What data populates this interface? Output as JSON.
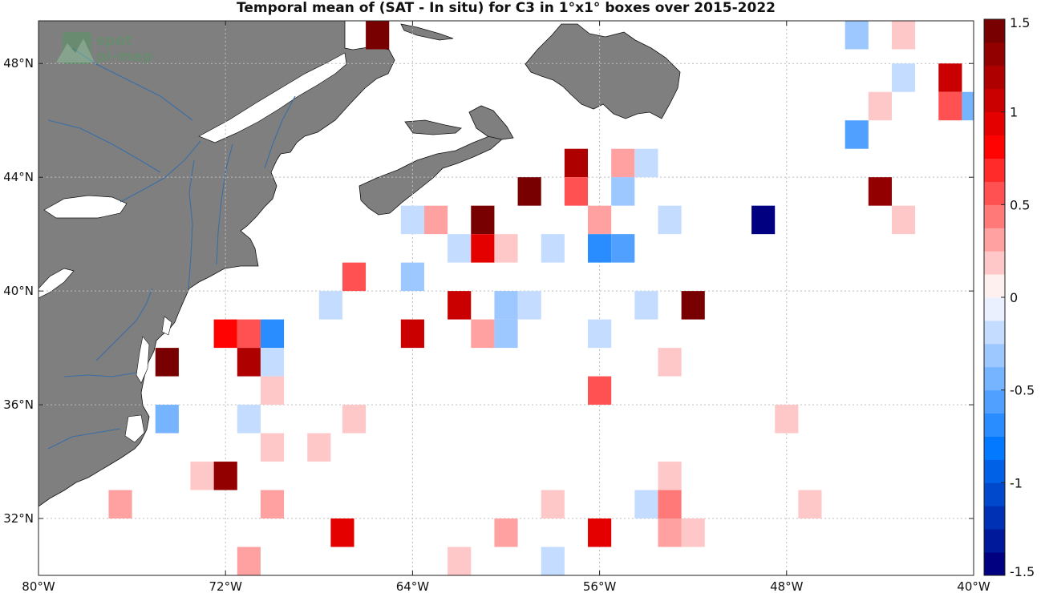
{
  "chart_data": {
    "type": "heatmap",
    "title": "Temporal mean of (SAT - In situ) for C3 in 1°x1° boxes over 2015-2022",
    "logo_text": "spot pi-men",
    "x_ticks": [
      "80°W",
      "72°W",
      "64°W",
      "56°W",
      "48°W",
      "40°W"
    ],
    "y_ticks": [
      "32°N",
      "36°N",
      "40°N",
      "44°N",
      "48°N"
    ],
    "xlim": [
      -80,
      -40
    ],
    "ylim": [
      30,
      49.5
    ],
    "grid": true,
    "colorbar": {
      "ticks": [
        "1.5",
        "1",
        "0.5",
        "0",
        "-0.5",
        "-1",
        "-1.5"
      ],
      "range": [
        -1.5,
        1.5
      ],
      "levels": 24,
      "colormap": "blue-white-red"
    },
    "land_color": "#7f7f7f",
    "cells": [
      {
        "lon": -65.5,
        "lat": 49.0,
        "value": 1.45
      },
      {
        "lon": -45.0,
        "lat": 49.0,
        "value": -0.35
      },
      {
        "lon": -43.0,
        "lat": 49.0,
        "value": 0.15
      },
      {
        "lon": -43.0,
        "lat": 47.5,
        "value": -0.2
      },
      {
        "lon": -41.0,
        "lat": 47.5,
        "value": 1.1
      },
      {
        "lon": -44.0,
        "lat": 46.5,
        "value": 0.15
      },
      {
        "lon": -41.0,
        "lat": 46.5,
        "value": 0.55
      },
      {
        "lon": -40.0,
        "lat": 46.5,
        "value": -0.45
      },
      {
        "lon": -45.0,
        "lat": 45.5,
        "value": -0.55
      },
      {
        "lon": -57.0,
        "lat": 44.5,
        "value": 1.2
      },
      {
        "lon": -55.0,
        "lat": 44.5,
        "value": 0.3
      },
      {
        "lon": -54.0,
        "lat": 44.5,
        "value": -0.15
      },
      {
        "lon": -59.0,
        "lat": 43.5,
        "value": 1.45
      },
      {
        "lon": -57.0,
        "lat": 43.5,
        "value": 0.5
      },
      {
        "lon": -55.0,
        "lat": 43.5,
        "value": -0.35
      },
      {
        "lon": -44.0,
        "lat": 43.5,
        "value": 1.25
      },
      {
        "lon": -64.0,
        "lat": 42.5,
        "value": -0.25
      },
      {
        "lon": -63.0,
        "lat": 42.5,
        "value": 0.3
      },
      {
        "lon": -61.0,
        "lat": 42.5,
        "value": 1.4
      },
      {
        "lon": -56.0,
        "lat": 42.5,
        "value": 0.3
      },
      {
        "lon": -53.0,
        "lat": 42.5,
        "value": -0.15
      },
      {
        "lon": -49.0,
        "lat": 42.5,
        "value": -1.5
      },
      {
        "lon": -43.0,
        "lat": 42.5,
        "value": 0.15
      },
      {
        "lon": -62.0,
        "lat": 41.5,
        "value": -0.25
      },
      {
        "lon": -61.0,
        "lat": 41.5,
        "value": 0.95
      },
      {
        "lon": -60.0,
        "lat": 41.5,
        "value": 0.15
      },
      {
        "lon": -58.0,
        "lat": 41.5,
        "value": -0.15
      },
      {
        "lon": -56.0,
        "lat": 41.5,
        "value": -0.7
      },
      {
        "lon": -55.0,
        "lat": 41.5,
        "value": -0.55
      },
      {
        "lon": -66.5,
        "lat": 40.5,
        "value": 0.55
      },
      {
        "lon": -64.0,
        "lat": 40.5,
        "value": -0.35
      },
      {
        "lon": -67.5,
        "lat": 39.5,
        "value": -0.25
      },
      {
        "lon": -62.0,
        "lat": 39.5,
        "value": 1.0
      },
      {
        "lon": -60.0,
        "lat": 39.5,
        "value": -0.35
      },
      {
        "lon": -59.0,
        "lat": 39.5,
        "value": -0.25
      },
      {
        "lon": -54.0,
        "lat": 39.5,
        "value": -0.15
      },
      {
        "lon": -52.0,
        "lat": 39.5,
        "value": 1.45
      },
      {
        "lon": -72.0,
        "lat": 38.5,
        "value": 0.75
      },
      {
        "lon": -71.0,
        "lat": 38.5,
        "value": 0.55
      },
      {
        "lon": -70.0,
        "lat": 38.5,
        "value": -0.7
      },
      {
        "lon": -64.0,
        "lat": 38.5,
        "value": 1.1
      },
      {
        "lon": -61.0,
        "lat": 38.5,
        "value": 0.35
      },
      {
        "lon": -60.0,
        "lat": 38.5,
        "value": -0.35
      },
      {
        "lon": -56.0,
        "lat": 38.5,
        "value": -0.25
      },
      {
        "lon": -74.5,
        "lat": 37.5,
        "value": 1.45
      },
      {
        "lon": -71.0,
        "lat": 37.5,
        "value": 1.15
      },
      {
        "lon": -70.0,
        "lat": 37.5,
        "value": -0.15
      },
      {
        "lon": -53.0,
        "lat": 37.5,
        "value": 0.15
      },
      {
        "lon": -70.0,
        "lat": 36.5,
        "value": 0.15
      },
      {
        "lon": -56.0,
        "lat": 36.5,
        "value": 0.55
      },
      {
        "lon": -74.5,
        "lat": 35.5,
        "value": -0.5
      },
      {
        "lon": -71.0,
        "lat": 35.5,
        "value": -0.15
      },
      {
        "lon": -66.5,
        "lat": 35.5,
        "value": 0.15
      },
      {
        "lon": -48.0,
        "lat": 35.5,
        "value": 0.15
      },
      {
        "lon": -70.0,
        "lat": 34.5,
        "value": 0.2
      },
      {
        "lon": -68.0,
        "lat": 34.5,
        "value": 0.2
      },
      {
        "lon": -73.0,
        "lat": 33.5,
        "value": 0.15
      },
      {
        "lon": -72.0,
        "lat": 33.5,
        "value": 1.25
      },
      {
        "lon": -53.0,
        "lat": 33.5,
        "value": 0.15
      },
      {
        "lon": -76.5,
        "lat": 32.5,
        "value": 0.3
      },
      {
        "lon": -70.0,
        "lat": 32.5,
        "value": 0.3
      },
      {
        "lon": -58.0,
        "lat": 32.5,
        "value": 0.15
      },
      {
        "lon": -54.0,
        "lat": 32.5,
        "value": -0.15
      },
      {
        "lon": -53.0,
        "lat": 32.5,
        "value": 0.45
      },
      {
        "lon": -47.0,
        "lat": 32.5,
        "value": 0.15
      },
      {
        "lon": -67.0,
        "lat": 31.5,
        "value": 0.95
      },
      {
        "lon": -60.0,
        "lat": 31.5,
        "value": 0.3
      },
      {
        "lon": -56.0,
        "lat": 31.5,
        "value": 0.9
      },
      {
        "lon": -53.0,
        "lat": 31.5,
        "value": 0.3
      },
      {
        "lon": -52.0,
        "lat": 31.5,
        "value": 0.15
      },
      {
        "lon": -71.0,
        "lat": 30.5,
        "value": 0.3
      },
      {
        "lon": -62.0,
        "lat": 30.5,
        "value": 0.15
      },
      {
        "lon": -58.0,
        "lat": 30.5,
        "value": -0.15
      }
    ]
  }
}
